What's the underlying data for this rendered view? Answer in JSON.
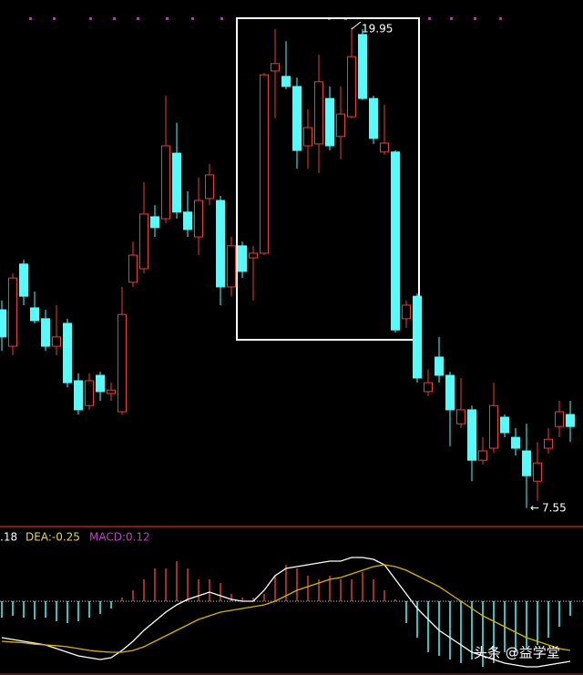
{
  "chart_data": [
    {
      "type": "candlestick",
      "open": [
        12.66,
        11.72,
        13.84,
        12.71,
        12.43,
        11.72,
        12.31,
        10.83,
        10.19,
        10.97,
        10.5,
        10.03,
        13.37,
        13.72,
        15.06,
        15.01,
        16.7,
        15.18,
        14.54,
        15.53,
        15.48,
        13.25,
        14.31,
        14.0,
        14.12,
        18.82,
        18.68,
        18.42,
        16.89,
        16.94,
        18.11,
        17.13,
        17.64,
        19.76,
        18.11,
        16.73,
        16.73,
        12.43,
        13.01,
        10.55,
        11.44,
        10.97,
        9.72,
        10.08,
        8.78,
        9.09,
        9.89,
        9.37,
        9.02,
        8.24,
        9.09,
        9.65,
        9.96
      ],
      "high": [
        12.9,
        13.6,
        13.95,
        13.13,
        12.66,
        12.78,
        12.43,
        11.02,
        11.02,
        11.06,
        10.78,
        13.25,
        14.42,
        15.95,
        15.36,
        18.18,
        17.48,
        15.72,
        16.07,
        16.42,
        15.6,
        14.54,
        14.42,
        14.31,
        18.77,
        19.9,
        19.59,
        18.65,
        17.83,
        19.24,
        18.42,
        18.42,
        19.95,
        19.9,
        18.18,
        17.95,
        16.77,
        12.9,
        13.08,
        11.13,
        11.96,
        11.06,
        10.9,
        10.19,
        9.37,
        10.78,
        9.96,
        9.61,
        9.72,
        9.25,
        9.61,
        10.31,
        10.31
      ],
      "low": [
        11.6,
        11.49,
        12.78,
        12.31,
        11.6,
        11.49,
        10.66,
        9.96,
        10.08,
        10.31,
        10.31,
        9.96,
        13.25,
        13.6,
        14.54,
        14.89,
        15.01,
        14.54,
        14.07,
        15.36,
        12.78,
        13.01,
        13.48,
        12.9,
        14.07,
        17.6,
        18.35,
        16.3,
        16.3,
        16.19,
        16.77,
        16.54,
        17.6,
        18.07,
        16.94,
        16.66,
        12.07,
        12.19,
        10.78,
        10.43,
        10.78,
        9.14,
        9.61,
        8.24,
        8.67,
        8.97,
        9.37,
        8.9,
        7.55,
        7.73,
        8.95,
        9.37,
        9.25
      ],
      "close": [
        11.96,
        13.48,
        13.01,
        12.38,
        11.72,
        11.96,
        10.78,
        10.08,
        10.83,
        10.55,
        10.59,
        12.54,
        14.07,
        15.13,
        14.78,
        16.89,
        15.18,
        14.73,
        15.48,
        16.14,
        13.25,
        14.31,
        13.65,
        14.12,
        18.72,
        19.01,
        18.42,
        16.77,
        17.36,
        18.54,
        16.89,
        17.71,
        19.19,
        18.11,
        17.08,
        16.96,
        12.14,
        12.78,
        10.9,
        10.78,
        10.97,
        10.08,
        10.08,
        8.78,
        9.02,
        10.19,
        9.49,
        9.09,
        8.38,
        8.71,
        9.32,
        10.03,
        9.65
      ],
      "ylim": [
        7.07,
        20.65
      ],
      "up_color": "#e8402f",
      "down_color": "#54fcfc",
      "annotations": [
        {
          "text": "19.95"
        },
        {
          "text": "7.55"
        }
      ]
    },
    {
      "type": "macd",
      "histogram": {
        "values": [
          -0.45,
          -0.4,
          -0.45,
          -0.5,
          -0.45,
          -0.55,
          -0.6,
          -0.55,
          -0.45,
          -0.35,
          -0.2,
          0.1,
          0.3,
          0.6,
          0.9,
          0.9,
          1.1,
          0.9,
          0.6,
          0.6,
          0.5,
          0.2,
          0.1,
          0.1,
          0.2,
          0.7,
          1.0,
          0.9,
          0.7,
          0.6,
          0.7,
          0.6,
          0.6,
          0.8,
          0.6,
          0.3,
          0.05,
          -0.6,
          -1.0,
          -1.4,
          -1.5,
          -1.6,
          -1.7,
          -1.6,
          -1.8,
          -1.7,
          -1.4,
          -1.4,
          -1.3,
          -1.2,
          -1.0,
          -0.7,
          -0.4
        ],
        "up_color": "#d8402e",
        "down_color": "#54fcfc"
      },
      "lines": [
        {
          "color": "#ffffff",
          "values": [
            -1.0,
            -1.05,
            -1.1,
            -1.15,
            -1.2,
            -1.3,
            -1.4,
            -1.5,
            -1.55,
            -1.6,
            -1.55,
            -1.35,
            -1.1,
            -0.8,
            -0.55,
            -0.3,
            -0.1,
            0.05,
            0.15,
            0.25,
            0.15,
            0.05,
            0.0,
            0.0,
            0.3,
            0.7,
            0.9,
            0.95,
            1.0,
            1.05,
            1.1,
            1.1,
            1.2,
            1.2,
            1.15,
            1.0,
            0.6,
            0.2,
            -0.2,
            -0.5,
            -0.8,
            -1.0,
            -1.2,
            -1.4,
            -1.5,
            -1.6,
            -1.7,
            -1.75,
            -1.8,
            -1.8,
            -1.75,
            -1.7,
            -1.65
          ]
        },
        {
          "color": "#d8b400",
          "values": [
            -1.1,
            -1.12,
            -1.14,
            -1.18,
            -1.2,
            -1.22,
            -1.25,
            -1.3,
            -1.35,
            -1.38,
            -1.4,
            -1.4,
            -1.35,
            -1.25,
            -1.1,
            -0.95,
            -0.8,
            -0.65,
            -0.5,
            -0.4,
            -0.3,
            -0.25,
            -0.2,
            -0.15,
            -0.1,
            0.0,
            0.15,
            0.3,
            0.4,
            0.5,
            0.6,
            0.65,
            0.75,
            0.85,
            0.95,
            1.0,
            0.95,
            0.85,
            0.7,
            0.55,
            0.4,
            0.2,
            0.0,
            -0.2,
            -0.4,
            -0.55,
            -0.7,
            -0.85,
            -1.0,
            -1.1,
            -1.2,
            -1.3,
            -1.35
          ]
        }
      ],
      "ylim": [
        -2.025,
        2.0
      ],
      "zero_line": true,
      "labels": [
        {
          "text": ".18",
          "color": "#ffffff"
        },
        {
          "text": "DEA:-0.25",
          "color": "#e8d44a"
        },
        {
          "text": "MACD:0.12",
          "color": "#c040c0"
        }
      ]
    }
  ],
  "watermark": "头条 @益学堂"
}
